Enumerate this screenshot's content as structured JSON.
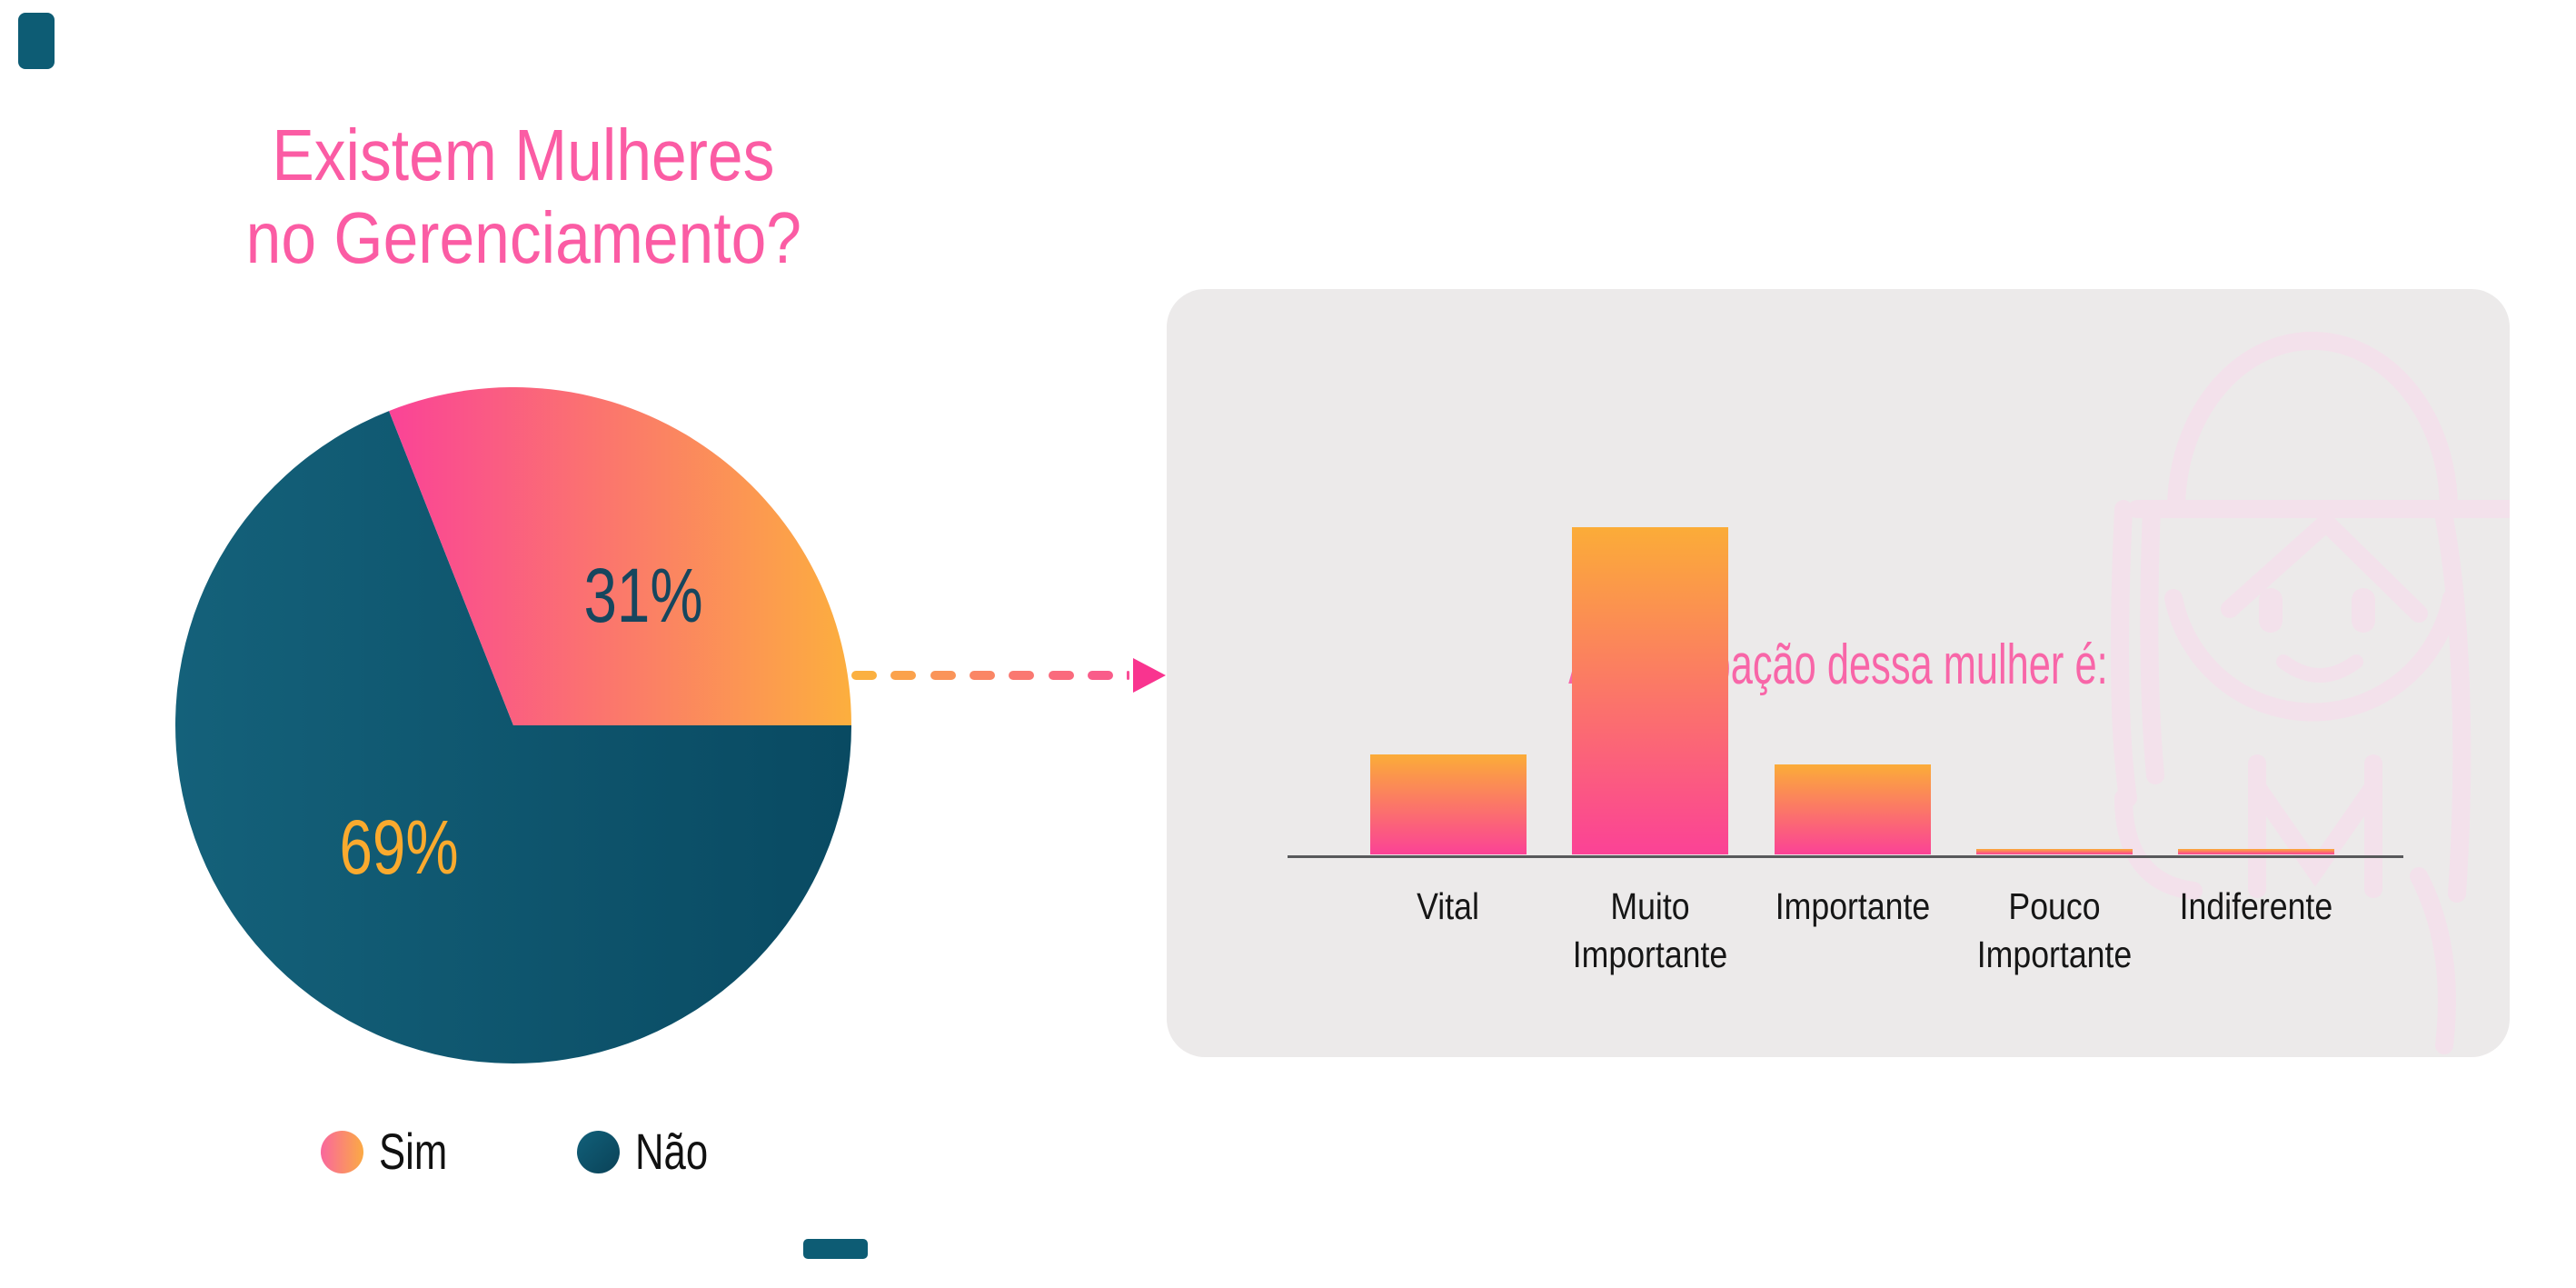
{
  "ui": {
    "title": {
      "line1": "Existem Mulheres",
      "line2": "no Gerenciamento?",
      "color": "#FB5CA4"
    },
    "pie_labels": {
      "sim": "31%",
      "nao": "69%"
    },
    "legend": [
      {
        "label": "Sim"
      },
      {
        "label": "Não"
      }
    ],
    "panel_title": "A participação dessa mulher é:"
  },
  "chart_data": [
    {
      "type": "pie",
      "title": "Existem Mulheres no Gerenciamento?",
      "categories": [
        "Sim",
        "Não"
      ],
      "values": [
        31,
        69
      ],
      "unit": "%",
      "data_labels": [
        "31%",
        "69%"
      ],
      "legend_position": "bottom-left",
      "colors": {
        "sim_gradient": [
          "#FA4397",
          "#FCAF3E"
        ],
        "nao_gradient": [
          "#14617A",
          "#094A62"
        ],
        "label_sim": "#16465E",
        "label_nao": "#FAAA2E"
      }
    },
    {
      "type": "bar",
      "title": "A participação dessa mulher é:",
      "categories": [
        "Vital",
        "Muito Importante",
        "Importante",
        "Pouco Importante",
        "Indiferente"
      ],
      "values": [
        19,
        62,
        17,
        1,
        1
      ],
      "unit": "%",
      "values_estimated_from_bar_heights": true,
      "value_labels_shown": false,
      "grid": false,
      "bar_gradient": [
        "#FBAC38",
        "#FB4296"
      ],
      "axis_color": "#58595B"
    }
  ],
  "arrow": {
    "style": "dashed",
    "direction": "right",
    "color_start": "#FBB040",
    "color_end": "#F94E96",
    "head_color": "#F9348F"
  },
  "colors": {
    "background": "#FFFFFF",
    "panel_background": "#ECEAEA",
    "accent_pink": "#FB5CA4",
    "accent_teal": "#0D5C74",
    "watermark_pink": "#F3E1EB",
    "label_text": "#161616"
  }
}
